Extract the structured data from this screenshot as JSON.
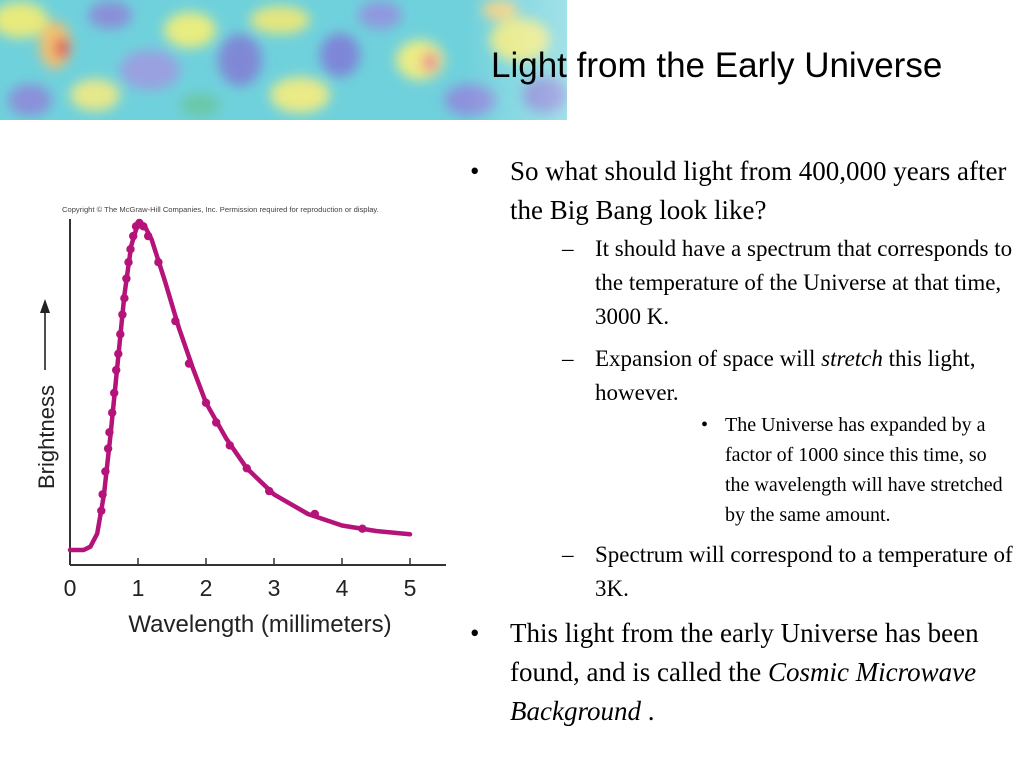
{
  "slide": {
    "title": "Light from the Early Universe",
    "banner_image": "cosmic microwave background temperature map",
    "bullets": {
      "b1": "So what should light from 400,000 years after the Big Bang look like?",
      "b1_sub1": "It should have a spectrum that corresponds to the temperature of the Universe at that time, 3000 K.",
      "b1_sub2_a": "Expansion of space will ",
      "b1_sub2_em": "stretch",
      "b1_sub2_b": " this light, however.",
      "b1_sub2_sub1": "The Universe has expanded by a factor of 1000 since this time, so the wavelength will have stretched by the same amount.",
      "b1_sub3": "Spectrum will correspond to a temperature of 3K.",
      "b2_a": "This light from the early Universe has been found, and is called the ",
      "b2_em": "Cosmic Microwave Background",
      "b2_b": " ."
    }
  },
  "chart_data": {
    "type": "line",
    "copyright": "Copyright © The McGraw-Hill Companies, Inc. Permission required for reproduction or display.",
    "xlabel": "Wavelength (millimeters)",
    "ylabel": "Brightness",
    "xlim": [
      0,
      5
    ],
    "ylim": [
      0,
      1.0
    ],
    "x_ticks": [
      "0",
      "1",
      "2",
      "3",
      "4",
      "5"
    ],
    "grid": false,
    "colors": {
      "curve": "#b5127a",
      "axis": "#333333",
      "text": "#222222"
    },
    "series": [
      {
        "curve": [
          [
            0.0,
            0.0
          ],
          [
            0.2,
            0.0
          ],
          [
            0.3,
            0.01
          ],
          [
            0.4,
            0.05
          ],
          [
            0.5,
            0.17
          ],
          [
            0.6,
            0.36
          ],
          [
            0.7,
            0.57
          ],
          [
            0.8,
            0.78
          ],
          [
            0.9,
            0.93
          ],
          [
            1.0,
            1.0
          ],
          [
            1.1,
            0.99
          ],
          [
            1.2,
            0.95
          ],
          [
            1.4,
            0.82
          ],
          [
            1.6,
            0.68
          ],
          [
            1.8,
            0.56
          ],
          [
            2.0,
            0.45
          ],
          [
            2.3,
            0.34
          ],
          [
            2.6,
            0.25
          ],
          [
            3.0,
            0.17
          ],
          [
            3.5,
            0.11
          ],
          [
            4.0,
            0.075
          ],
          [
            4.5,
            0.058
          ],
          [
            5.0,
            0.048
          ]
        ],
        "points": [
          [
            0.46,
            0.12
          ],
          [
            0.48,
            0.17
          ],
          [
            0.52,
            0.24
          ],
          [
            0.56,
            0.31
          ],
          [
            0.58,
            0.36
          ],
          [
            0.62,
            0.42
          ],
          [
            0.65,
            0.48
          ],
          [
            0.68,
            0.55
          ],
          [
            0.71,
            0.6
          ],
          [
            0.74,
            0.66
          ],
          [
            0.77,
            0.72
          ],
          [
            0.8,
            0.77
          ],
          [
            0.83,
            0.83
          ],
          [
            0.86,
            0.88
          ],
          [
            0.89,
            0.92
          ],
          [
            0.93,
            0.96
          ],
          [
            0.97,
            0.99
          ],
          [
            1.02,
            1.0
          ],
          [
            1.08,
            0.99
          ],
          [
            1.15,
            0.96
          ],
          [
            1.3,
            0.88
          ],
          [
            1.55,
            0.7
          ],
          [
            1.75,
            0.57
          ],
          [
            2.0,
            0.45
          ],
          [
            2.15,
            0.39
          ],
          [
            2.35,
            0.32
          ],
          [
            2.6,
            0.25
          ],
          [
            2.93,
            0.18
          ],
          [
            3.6,
            0.11
          ],
          [
            4.3,
            0.065
          ]
        ]
      }
    ]
  }
}
